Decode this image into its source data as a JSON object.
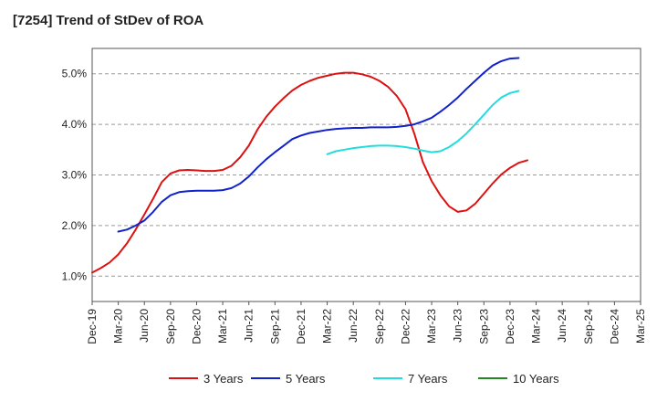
{
  "title": "[7254]  Trend of StDev of ROA",
  "chart_data": {
    "type": "line",
    "title": "[7254]  Trend of StDev of ROA",
    "xlabel": "",
    "ylabel": "",
    "x_ticks": [
      "Dec-19",
      "Mar-20",
      "Jun-20",
      "Sep-20",
      "Dec-20",
      "Mar-21",
      "Jun-21",
      "Sep-21",
      "Dec-21",
      "Mar-22",
      "Jun-22",
      "Sep-22",
      "Dec-22",
      "Mar-23",
      "Jun-23",
      "Sep-23",
      "Dec-23",
      "Mar-24",
      "Jun-24",
      "Sep-24",
      "Dec-24",
      "Mar-25"
    ],
    "y_ticks": [
      "1.0%",
      "2.0%",
      "3.0%",
      "4.0%",
      "5.0%"
    ],
    "y_tick_values": [
      1.0,
      2.0,
      3.0,
      4.0,
      5.0
    ],
    "ylim": [
      0.5,
      5.5
    ],
    "y_unit": "%",
    "grid": "horizontal dashed",
    "legend_position": "bottom",
    "series": [
      {
        "name": "3 Years",
        "color": "#dd1111",
        "points": [
          [
            "Dec-19",
            1.07
          ],
          [
            "Jan-20",
            1.16
          ],
          [
            "Feb-20",
            1.27
          ],
          [
            "Mar-20",
            1.43
          ],
          [
            "Apr-20",
            1.65
          ],
          [
            "May-20",
            1.92
          ],
          [
            "Jun-20",
            2.22
          ],
          [
            "Jul-20",
            2.53
          ],
          [
            "Aug-20",
            2.86
          ],
          [
            "Sep-20",
            3.03
          ],
          [
            "Oct-20",
            3.09
          ],
          [
            "Nov-20",
            3.1
          ],
          [
            "Dec-20",
            3.09
          ],
          [
            "Jan-21",
            3.08
          ],
          [
            "Feb-21",
            3.08
          ],
          [
            "Mar-21",
            3.1
          ],
          [
            "Apr-21",
            3.18
          ],
          [
            "May-21",
            3.35
          ],
          [
            "Jun-21",
            3.58
          ],
          [
            "Jul-21",
            3.9
          ],
          [
            "Aug-21",
            4.15
          ],
          [
            "Sep-21",
            4.35
          ],
          [
            "Oct-21",
            4.52
          ],
          [
            "Nov-21",
            4.67
          ],
          [
            "Dec-21",
            4.78
          ],
          [
            "Jan-22",
            4.86
          ],
          [
            "Feb-22",
            4.92
          ],
          [
            "Mar-22",
            4.96
          ],
          [
            "Apr-22",
            5.0
          ],
          [
            "May-22",
            5.02
          ],
          [
            "Jun-22",
            5.02
          ],
          [
            "Jul-22",
            4.99
          ],
          [
            "Aug-22",
            4.94
          ],
          [
            "Sep-22",
            4.86
          ],
          [
            "Oct-22",
            4.74
          ],
          [
            "Nov-22",
            4.56
          ],
          [
            "Dec-22",
            4.3
          ],
          [
            "Jan-23",
            3.82
          ],
          [
            "Feb-23",
            3.25
          ],
          [
            "Mar-23",
            2.88
          ],
          [
            "Apr-23",
            2.6
          ],
          [
            "May-23",
            2.38
          ],
          [
            "Jun-23",
            2.27
          ],
          [
            "Jul-23",
            2.3
          ],
          [
            "Aug-23",
            2.43
          ],
          [
            "Sep-23",
            2.63
          ],
          [
            "Oct-23",
            2.83
          ],
          [
            "Nov-23",
            3.01
          ],
          [
            "Dec-23",
            3.14
          ],
          [
            "Jan-24",
            3.24
          ],
          [
            "Feb-24",
            3.29
          ]
        ]
      },
      {
        "name": "5 Years",
        "color": "#1122cc",
        "points": [
          [
            "Mar-20",
            1.88
          ],
          [
            "Apr-20",
            1.92
          ],
          [
            "May-20",
            2.0
          ],
          [
            "Jun-20",
            2.1
          ],
          [
            "Jul-20",
            2.27
          ],
          [
            "Aug-20",
            2.47
          ],
          [
            "Sep-20",
            2.6
          ],
          [
            "Oct-20",
            2.66
          ],
          [
            "Nov-20",
            2.68
          ],
          [
            "Dec-20",
            2.69
          ],
          [
            "Jan-21",
            2.69
          ],
          [
            "Feb-21",
            2.69
          ],
          [
            "Mar-21",
            2.7
          ],
          [
            "Apr-21",
            2.74
          ],
          [
            "May-21",
            2.83
          ],
          [
            "Jun-21",
            2.97
          ],
          [
            "Jul-21",
            3.15
          ],
          [
            "Aug-21",
            3.31
          ],
          [
            "Sep-21",
            3.45
          ],
          [
            "Oct-21",
            3.58
          ],
          [
            "Nov-21",
            3.71
          ],
          [
            "Dec-21",
            3.78
          ],
          [
            "Jan-22",
            3.83
          ],
          [
            "Feb-22",
            3.86
          ],
          [
            "Mar-22",
            3.89
          ],
          [
            "Apr-22",
            3.91
          ],
          [
            "May-22",
            3.92
          ],
          [
            "Jun-22",
            3.93
          ],
          [
            "Jul-22",
            3.93
          ],
          [
            "Aug-22",
            3.94
          ],
          [
            "Sep-22",
            3.94
          ],
          [
            "Oct-22",
            3.94
          ],
          [
            "Nov-22",
            3.95
          ],
          [
            "Dec-22",
            3.97
          ],
          [
            "Jan-23",
            4.0
          ],
          [
            "Feb-23",
            4.06
          ],
          [
            "Mar-23",
            4.13
          ],
          [
            "Apr-23",
            4.25
          ],
          [
            "May-23",
            4.38
          ],
          [
            "Jun-23",
            4.53
          ],
          [
            "Jul-23",
            4.7
          ],
          [
            "Aug-23",
            4.86
          ],
          [
            "Sep-23",
            5.02
          ],
          [
            "Oct-23",
            5.16
          ],
          [
            "Nov-23",
            5.25
          ],
          [
            "Dec-23",
            5.3
          ],
          [
            "Jan-24",
            5.31
          ]
        ]
      },
      {
        "name": "7 Years",
        "color": "#22dddd",
        "points": [
          [
            "Mar-22",
            3.41
          ],
          [
            "Apr-22",
            3.47
          ],
          [
            "May-22",
            3.5
          ],
          [
            "Jun-22",
            3.53
          ],
          [
            "Jul-22",
            3.55
          ],
          [
            "Aug-22",
            3.57
          ],
          [
            "Sep-22",
            3.58
          ],
          [
            "Oct-22",
            3.58
          ],
          [
            "Nov-22",
            3.57
          ],
          [
            "Dec-22",
            3.55
          ],
          [
            "Jan-23",
            3.52
          ],
          [
            "Feb-23",
            3.48
          ],
          [
            "Mar-23",
            3.45
          ],
          [
            "Apr-23",
            3.47
          ],
          [
            "May-23",
            3.55
          ],
          [
            "Jun-23",
            3.67
          ],
          [
            "Jul-23",
            3.82
          ],
          [
            "Aug-23",
            4.0
          ],
          [
            "Sep-23",
            4.19
          ],
          [
            "Oct-23",
            4.38
          ],
          [
            "Nov-23",
            4.53
          ],
          [
            "Dec-23",
            4.62
          ],
          [
            "Jan-24",
            4.66
          ]
        ]
      },
      {
        "name": "10 Years",
        "color": "#228822",
        "points": []
      }
    ]
  }
}
